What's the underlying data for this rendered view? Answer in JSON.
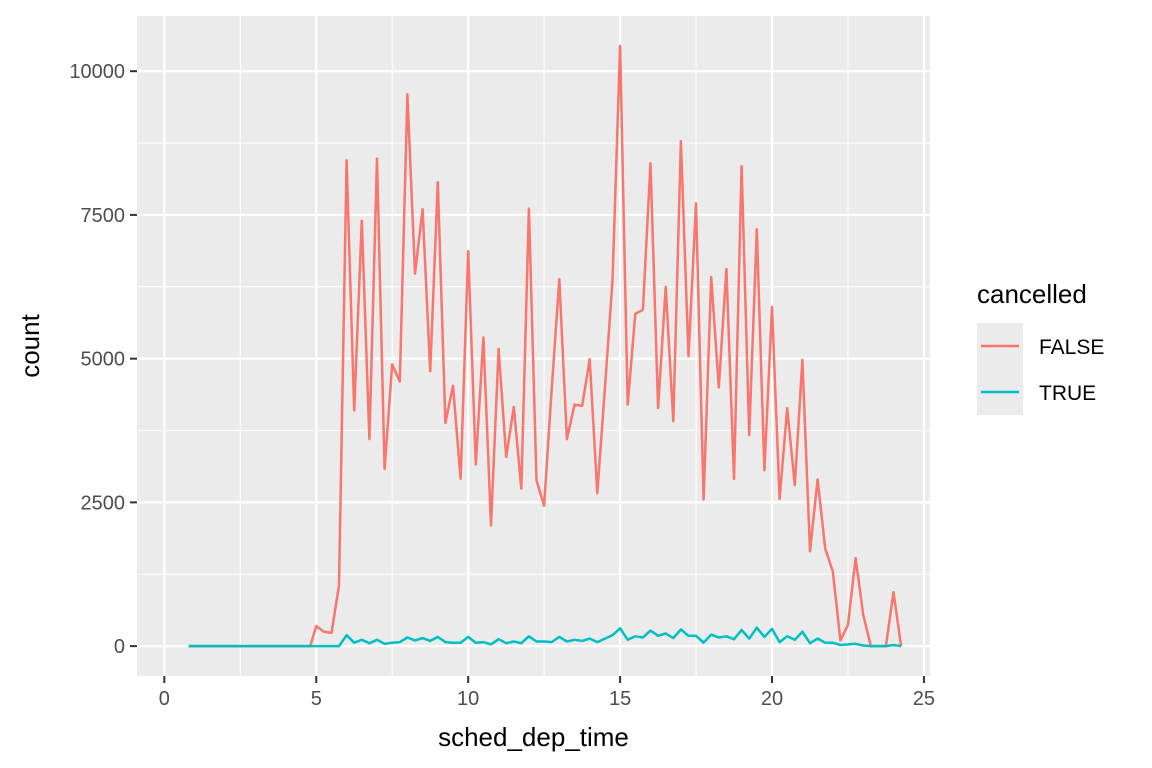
{
  "chart_data": {
    "type": "line",
    "xlabel": "sched_dep_time",
    "ylabel": "count",
    "xlim": [
      -0.9,
      25.2
    ],
    "ylim": [
      -520,
      10960
    ],
    "xticks": [
      0,
      5,
      10,
      15,
      20,
      25
    ],
    "xtick_labels": [
      "0",
      "5",
      "10",
      "15",
      "20",
      "25"
    ],
    "yticks": [
      0,
      2500,
      5000,
      7500,
      10000
    ],
    "ytick_labels": [
      "0",
      "2500",
      "5000",
      "7500",
      "10000"
    ],
    "grid": true,
    "legend": {
      "title": "cancelled",
      "position": "right"
    },
    "series": [
      {
        "name": "FALSE",
        "color": "#F8766D",
        "x": [
          0.8,
          4.8,
          5.0,
          5.25,
          5.5,
          5.75,
          6.0,
          6.25,
          6.5,
          6.75,
          7.0,
          7.25,
          7.5,
          7.75,
          8.0,
          8.25,
          8.5,
          8.75,
          9.0,
          9.25,
          9.5,
          9.75,
          10.0,
          10.25,
          10.5,
          10.75,
          11.0,
          11.25,
          11.5,
          11.75,
          12.0,
          12.25,
          12.5,
          12.75,
          13.0,
          13.25,
          13.5,
          13.75,
          14.0,
          14.25,
          14.5,
          14.75,
          15.0,
          15.25,
          15.5,
          15.75,
          16.0,
          16.25,
          16.5,
          16.75,
          17.0,
          17.25,
          17.5,
          17.75,
          18.0,
          18.25,
          18.5,
          18.75,
          19.0,
          19.25,
          19.5,
          19.75,
          20.0,
          20.25,
          20.5,
          20.75,
          21.0,
          21.25,
          21.5,
          21.75,
          22.0,
          22.25,
          22.5,
          22.75,
          23.0,
          23.25,
          23.5,
          23.75,
          24.0,
          24.25
        ],
        "y": [
          0,
          0,
          350,
          250,
          230,
          1050,
          8450,
          4100,
          7400,
          3600,
          8480,
          3080,
          4900,
          4600,
          9600,
          6480,
          7600,
          4780,
          8070,
          3880,
          4530,
          2910,
          6870,
          3160,
          5370,
          2100,
          5170,
          3290,
          4160,
          2740,
          7610,
          2880,
          2440,
          4470,
          6380,
          3600,
          4200,
          4180,
          4990,
          2660,
          4480,
          6360,
          10440,
          4200,
          5780,
          5850,
          8400,
          4140,
          6250,
          3910,
          8780,
          5040,
          7700,
          2550,
          6420,
          4500,
          6560,
          2910,
          8350,
          3670,
          7250,
          3060,
          5900,
          2560,
          4140,
          2800,
          4980,
          1650,
          2900,
          1700,
          1300,
          100,
          370,
          1530,
          550,
          0,
          0,
          0,
          940,
          0
        ]
      },
      {
        "name": "TRUE",
        "color": "#00BFC4",
        "x": [
          0.8,
          4.8,
          5.0,
          5.25,
          5.5,
          5.75,
          6.0,
          6.25,
          6.5,
          6.75,
          7.0,
          7.25,
          7.5,
          7.75,
          8.0,
          8.25,
          8.5,
          8.75,
          9.0,
          9.25,
          9.5,
          9.75,
          10.0,
          10.25,
          10.5,
          10.75,
          11.0,
          11.25,
          11.5,
          11.75,
          12.0,
          12.25,
          12.5,
          12.75,
          13.0,
          13.25,
          13.5,
          13.75,
          14.0,
          14.25,
          14.5,
          14.75,
          15.0,
          15.25,
          15.5,
          15.75,
          16.0,
          16.25,
          16.5,
          16.75,
          17.0,
          17.25,
          17.5,
          17.75,
          18.0,
          18.25,
          18.5,
          18.75,
          19.0,
          19.25,
          19.5,
          19.75,
          20.0,
          20.25,
          20.5,
          20.75,
          21.0,
          21.25,
          21.5,
          21.75,
          22.0,
          22.25,
          22.5,
          22.75,
          23.0,
          23.25,
          23.5,
          23.75,
          24.0,
          24.25
        ],
        "y": [
          0,
          0,
          0,
          0,
          0,
          0,
          190,
          60,
          110,
          50,
          110,
          40,
          60,
          70,
          150,
          100,
          140,
          90,
          160,
          70,
          60,
          60,
          160,
          60,
          70,
          30,
          120,
          50,
          80,
          50,
          170,
          80,
          80,
          70,
          160,
          80,
          110,
          90,
          130,
          70,
          130,
          190,
          310,
          110,
          170,
          150,
          270,
          180,
          220,
          140,
          290,
          180,
          180,
          60,
          200,
          150,
          170,
          120,
          280,
          130,
          320,
          160,
          300,
          70,
          170,
          110,
          250,
          50,
          130,
          60,
          60,
          20,
          30,
          40,
          10,
          0,
          0,
          0,
          20,
          0
        ]
      }
    ]
  }
}
